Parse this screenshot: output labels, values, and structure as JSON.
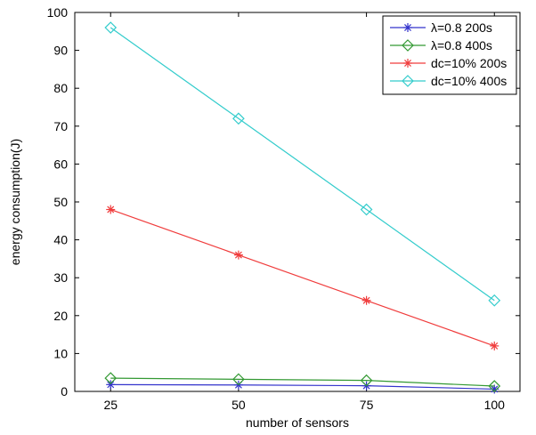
{
  "chart_data": {
    "type": "line",
    "title": "",
    "xlabel": "number of sensors",
    "ylabel": "energy consumption(J)",
    "x": [
      25,
      50,
      75,
      100
    ],
    "xlim": [
      18,
      105
    ],
    "ylim": [
      0,
      100
    ],
    "xticks": [
      "25",
      "50",
      "75",
      "100"
    ],
    "yticks": [
      "0",
      "10",
      "20",
      "30",
      "40",
      "50",
      "60",
      "70",
      "80",
      "90",
      "100"
    ],
    "grid": false,
    "legend_position": "top-right",
    "series": [
      {
        "name": "λ=0.8 200s",
        "color": "#3333cc",
        "marker": "star",
        "values": [
          1.8,
          1.7,
          1.5,
          0.6
        ]
      },
      {
        "name": "λ=0.8 400s",
        "color": "#339933",
        "marker": "diamond",
        "values": [
          3.5,
          3.2,
          2.9,
          1.4
        ]
      },
      {
        "name": "dc=10% 200s",
        "color": "#f03c3c",
        "marker": "star",
        "values": [
          48,
          36,
          24,
          12
        ]
      },
      {
        "name": "dc=10% 400s",
        "color": "#33cccc",
        "marker": "diamond",
        "values": [
          96,
          72,
          48,
          24
        ]
      }
    ]
  }
}
